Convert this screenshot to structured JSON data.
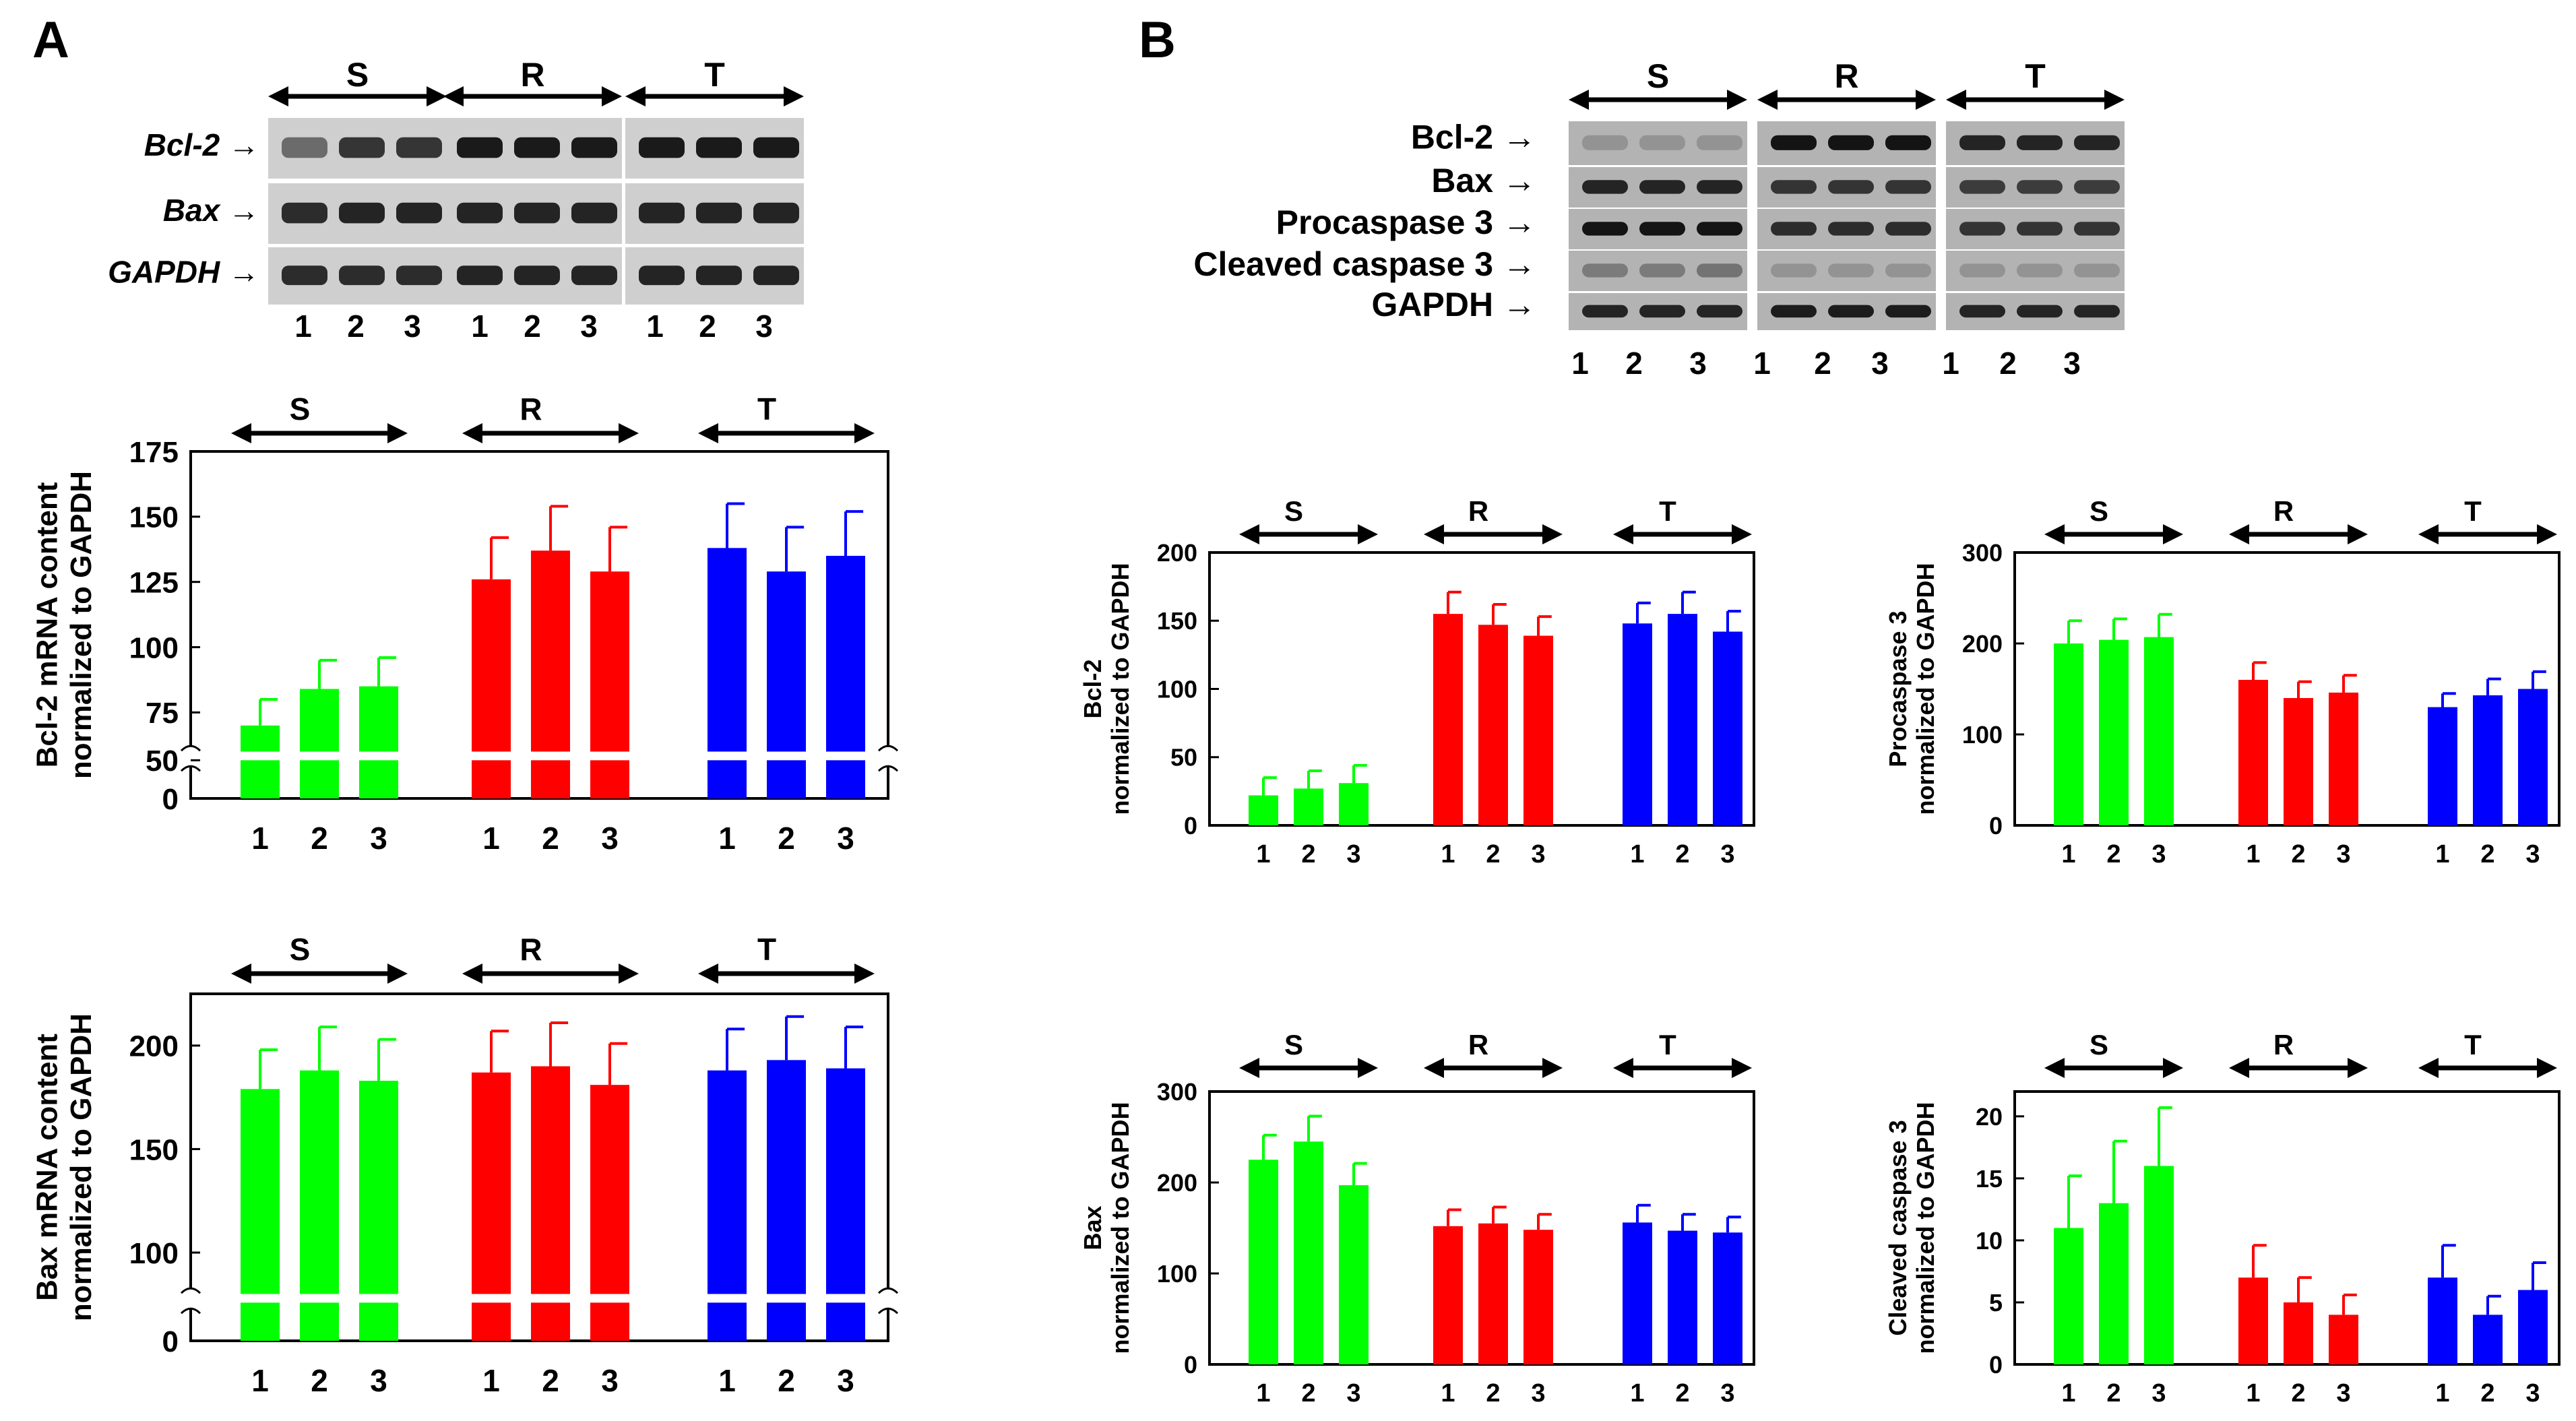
{
  "panels": [
    {
      "id": "A",
      "label": "A"
    },
    {
      "id": "B",
      "label": "B"
    }
  ],
  "groups": [
    "S",
    "R",
    "T"
  ],
  "lanes": [
    "1",
    "2",
    "3"
  ],
  "colors": {
    "S": "#00ff00",
    "R": "#ff0000",
    "T": "#0000ff",
    "frame": "#000000"
  },
  "gels": [
    {
      "id": "gel-a",
      "rows": [
        {
          "label": "Bcl-2 →",
          "italic": true,
          "intensity": [
            0.55,
            0.85,
            0.85,
            1,
            1,
            1,
            1,
            1,
            1
          ]
        },
        {
          "label": "Bax →",
          "italic": true,
          "intensity": [
            0.9,
            0.95,
            0.95,
            0.95,
            0.95,
            0.95,
            0.95,
            0.95,
            0.95
          ]
        },
        {
          "label": "GAPDH →",
          "italic": true,
          "intensity": [
            0.9,
            0.9,
            0.9,
            0.95,
            0.95,
            0.95,
            0.95,
            0.95,
            0.95
          ]
        }
      ]
    },
    {
      "id": "gel-b",
      "rows": [
        {
          "label": "Bcl-2 →",
          "italic": false,
          "intensity": [
            0.2,
            0.2,
            0.2,
            1,
            1,
            1,
            0.9,
            0.9,
            0.9
          ]
        },
        {
          "label": "Bax →",
          "italic": false,
          "intensity": [
            0.9,
            0.9,
            0.9,
            0.8,
            0.8,
            0.8,
            0.75,
            0.75,
            0.75
          ]
        },
        {
          "label": "Procaspase 3 →",
          "italic": false,
          "intensity": [
            1,
            1,
            1,
            0.85,
            0.85,
            0.85,
            0.8,
            0.8,
            0.8
          ]
        },
        {
          "label": "Cleaved caspase 3 →",
          "italic": false,
          "intensity": [
            0.35,
            0.35,
            0.4,
            0.2,
            0.2,
            0.2,
            0.2,
            0.2,
            0.2
          ]
        },
        {
          "label": "GAPDH →",
          "italic": false,
          "intensity": [
            0.9,
            0.9,
            0.9,
            0.95,
            0.95,
            0.95,
            0.9,
            0.9,
            0.9
          ]
        }
      ]
    }
  ],
  "chart_data": [
    {
      "id": "a-bcl2-mrna",
      "type": "bar",
      "ylabel": [
        "Bcl-2 mRNA content",
        "normalized to GAPDH"
      ],
      "ylim": [
        0,
        175
      ],
      "yticks": [
        0,
        50,
        75,
        100,
        125,
        150,
        175
      ],
      "axis_break": [
        50,
        60
      ],
      "groups": [
        "S",
        "R",
        "T"
      ],
      "categories": [
        "1",
        "2",
        "3"
      ],
      "series": [
        {
          "name": "S",
          "values": [
            70,
            84,
            85
          ],
          "errors": [
            10,
            11,
            11
          ]
        },
        {
          "name": "R",
          "values": [
            126,
            137,
            129
          ],
          "errors": [
            16,
            17,
            17
          ]
        },
        {
          "name": "T",
          "values": [
            138,
            129,
            135
          ],
          "errors": [
            17,
            17,
            17
          ]
        }
      ]
    },
    {
      "id": "a-bax-mrna",
      "type": "bar",
      "ylabel": [
        "Bax mRNA content",
        "normalized to GAPDH"
      ],
      "ylim": [
        0,
        225
      ],
      "yticks": [
        0,
        100,
        150,
        200
      ],
      "axis_break": [
        40,
        80
      ],
      "groups": [
        "S",
        "R",
        "T"
      ],
      "categories": [
        "1",
        "2",
        "3"
      ],
      "series": [
        {
          "name": "S",
          "values": [
            179,
            188,
            183
          ],
          "errors": [
            19,
            21,
            20
          ]
        },
        {
          "name": "R",
          "values": [
            187,
            190,
            181
          ],
          "errors": [
            20,
            21,
            20
          ]
        },
        {
          "name": "T",
          "values": [
            188,
            193,
            189
          ],
          "errors": [
            20,
            21,
            20
          ]
        }
      ]
    },
    {
      "id": "b-bcl2",
      "type": "bar",
      "ylabel": [
        "Bcl-2",
        "normalized to GAPDH"
      ],
      "ylim": [
        0,
        200
      ],
      "yticks": [
        0,
        50,
        100,
        150,
        200
      ],
      "groups": [
        "S",
        "R",
        "T"
      ],
      "categories": [
        "1",
        "2",
        "3"
      ],
      "series": [
        {
          "name": "S",
          "values": [
            22,
            27,
            31
          ],
          "errors": [
            13,
            13,
            13
          ]
        },
        {
          "name": "R",
          "values": [
            155,
            147,
            139
          ],
          "errors": [
            16,
            15,
            14
          ]
        },
        {
          "name": "T",
          "values": [
            148,
            155,
            142
          ],
          "errors": [
            15,
            16,
            15
          ]
        }
      ]
    },
    {
      "id": "b-procaspase3",
      "type": "bar",
      "ylabel": [
        "Procaspase 3",
        "normalized to GAPDH"
      ],
      "ylim": [
        0,
        300
      ],
      "yticks": [
        0,
        100,
        200,
        300
      ],
      "groups": [
        "S",
        "R",
        "T"
      ],
      "categories": [
        "1",
        "2",
        "3"
      ],
      "series": [
        {
          "name": "S",
          "values": [
            200,
            204,
            207
          ],
          "errors": [
            25,
            23,
            25
          ]
        },
        {
          "name": "R",
          "values": [
            160,
            140,
            146
          ],
          "errors": [
            19,
            18,
            19
          ]
        },
        {
          "name": "T",
          "values": [
            130,
            143,
            150
          ],
          "errors": [
            15,
            18,
            19
          ]
        }
      ]
    },
    {
      "id": "b-bax",
      "type": "bar",
      "ylabel": [
        "Bax",
        "normalized to GAPDH"
      ],
      "ylim": [
        0,
        300
      ],
      "yticks": [
        0,
        100,
        200,
        300
      ],
      "groups": [
        "S",
        "R",
        "T"
      ],
      "categories": [
        "1",
        "2",
        "3"
      ],
      "series": [
        {
          "name": "S",
          "values": [
            225,
            245,
            197
          ],
          "errors": [
            27,
            28,
            24
          ]
        },
        {
          "name": "R",
          "values": [
            152,
            155,
            148
          ],
          "errors": [
            18,
            18,
            17
          ]
        },
        {
          "name": "T",
          "values": [
            156,
            147,
            145
          ],
          "errors": [
            19,
            18,
            17
          ]
        }
      ]
    },
    {
      "id": "b-cleaved-caspase3",
      "type": "bar",
      "ylabel": [
        "Cleaved caspase 3",
        "normalized to GAPDH"
      ],
      "ylim": [
        0,
        22
      ],
      "yticks": [
        0,
        5,
        10,
        15,
        20
      ],
      "groups": [
        "S",
        "R",
        "T"
      ],
      "categories": [
        "1",
        "2",
        "3"
      ],
      "series": [
        {
          "name": "S",
          "values": [
            11,
            13,
            16
          ],
          "errors": [
            4.2,
            5,
            4.7
          ]
        },
        {
          "name": "R",
          "values": [
            7,
            5,
            4
          ],
          "errors": [
            2.6,
            2,
            1.6
          ]
        },
        {
          "name": "T",
          "values": [
            7,
            4,
            6
          ],
          "errors": [
            2.6,
            1.5,
            2.2
          ]
        }
      ]
    }
  ]
}
